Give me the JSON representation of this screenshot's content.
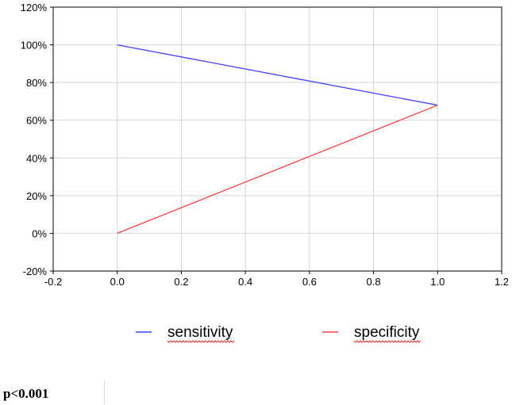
{
  "chart_data": {
    "type": "line",
    "x_ticks": [
      "-0.2",
      "0.0",
      "0.2",
      "0.4",
      "0.6",
      "0.8",
      "1.0",
      "1.2"
    ],
    "y_ticks": [
      "-20%",
      "0%",
      "20%",
      "40%",
      "60%",
      "80%",
      "100%",
      "120%"
    ],
    "xlim": [
      -0.2,
      1.2
    ],
    "ylim": [
      -20,
      120
    ],
    "grid": true,
    "legend_position": "bottom",
    "series": [
      {
        "name": "sensitivity",
        "color": "#4040ff",
        "x": [
          0.0,
          1.0
        ],
        "y": [
          100,
          68
        ]
      },
      {
        "name": "specificity",
        "color": "#ff4040",
        "x": [
          0.0,
          1.0
        ],
        "y": [
          0,
          68
        ]
      }
    ]
  },
  "note": "p<0.001"
}
